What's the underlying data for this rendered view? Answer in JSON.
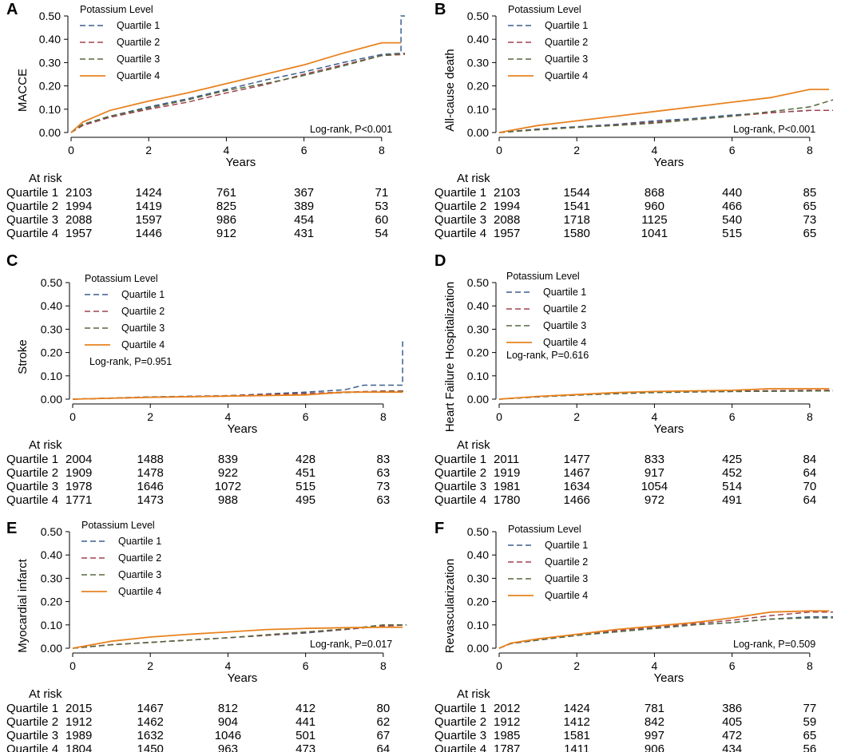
{
  "colors": {
    "q1": "#3a5f8f",
    "q2": "#a0424e",
    "q3": "#56683c",
    "q4": "#e8821f",
    "axis": "#000000"
  },
  "common": {
    "xlabel": "Years",
    "legend_title": "Potassium Level",
    "at_risk_label": "At risk",
    "y_ticks": [
      "0.00",
      "0.10",
      "0.20",
      "0.30",
      "0.40",
      "0.50"
    ],
    "x_ticks": [
      "0",
      "2",
      "4",
      "6",
      "8"
    ]
  },
  "chart_data": [
    {
      "type": "line",
      "letter": "A",
      "ylabel": "MACCE",
      "xlabel": "Years",
      "xlim": [
        0,
        8.6
      ],
      "ylim": [
        0,
        0.5
      ],
      "logrank": "Log-rank, P<0.001",
      "legend_title": "Potassium Level",
      "series": [
        {
          "name": "Quartile 1",
          "x": [
            0,
            0.3,
            1,
            2,
            3,
            4,
            5,
            6,
            7,
            8,
            8.5,
            8.5,
            8.6
          ],
          "y": [
            0,
            0.035,
            0.07,
            0.11,
            0.145,
            0.185,
            0.225,
            0.26,
            0.3,
            0.335,
            0.34,
            0.5,
            0.5
          ]
        },
        {
          "name": "Quartile 2",
          "x": [
            0,
            0.3,
            1,
            2,
            3,
            4,
            5,
            6,
            7,
            8,
            8.6
          ],
          "y": [
            0,
            0.03,
            0.065,
            0.1,
            0.13,
            0.17,
            0.205,
            0.25,
            0.29,
            0.33,
            0.335
          ]
        },
        {
          "name": "Quartile 3",
          "x": [
            0,
            0.3,
            1,
            2,
            3,
            4,
            5,
            6,
            7,
            8,
            8.6
          ],
          "y": [
            0,
            0.035,
            0.07,
            0.105,
            0.14,
            0.18,
            0.21,
            0.245,
            0.285,
            0.33,
            0.34
          ]
        },
        {
          "name": "Quartile 4",
          "x": [
            0,
            0.3,
            1,
            2,
            3,
            4,
            5,
            6,
            7,
            8,
            8.5
          ],
          "y": [
            0,
            0.045,
            0.095,
            0.135,
            0.17,
            0.21,
            0.25,
            0.29,
            0.34,
            0.385,
            0.385
          ]
        }
      ],
      "at_risk": [
        {
          "label": "Quartile 1",
          "values": [
            "2103",
            "1424",
            "761",
            "367",
            "71"
          ]
        },
        {
          "label": "Quartile 2",
          "values": [
            "1994",
            "1419",
            "825",
            "389",
            "53"
          ]
        },
        {
          "label": "Quartile 3",
          "values": [
            "2088",
            "1597",
            "986",
            "454",
            "60"
          ]
        },
        {
          "label": "Quartile 4",
          "values": [
            "1957",
            "1446",
            "912",
            "431",
            "54"
          ]
        }
      ]
    },
    {
      "type": "line",
      "letter": "B",
      "ylabel": "All-cause death",
      "xlabel": "Years",
      "xlim": [
        0,
        8.6
      ],
      "ylim": [
        0,
        0.5
      ],
      "logrank": "Log-rank, P<0.001",
      "legend_title": "Potassium Level",
      "series": [
        {
          "name": "Quartile 1",
          "x": [
            0,
            1,
            2,
            3,
            4,
            5,
            6,
            7,
            8,
            8.6
          ],
          "y": [
            0,
            0.015,
            0.025,
            0.035,
            0.05,
            0.06,
            0.075,
            0.085,
            0.095,
            0.095
          ]
        },
        {
          "name": "Quartile 2",
          "x": [
            0,
            1,
            2,
            3,
            4,
            5,
            6,
            7,
            8,
            8.6
          ],
          "y": [
            0,
            0.012,
            0.022,
            0.032,
            0.045,
            0.055,
            0.07,
            0.085,
            0.095,
            0.095
          ]
        },
        {
          "name": "Quartile 3",
          "x": [
            0,
            1,
            2,
            3,
            4,
            5,
            6,
            7,
            8,
            8.6
          ],
          "y": [
            0,
            0.012,
            0.022,
            0.03,
            0.04,
            0.055,
            0.07,
            0.09,
            0.11,
            0.14
          ]
        },
        {
          "name": "Quartile 4",
          "x": [
            0,
            1,
            2,
            3,
            4,
            5,
            6,
            7,
            8,
            8.5
          ],
          "y": [
            0,
            0.03,
            0.05,
            0.07,
            0.09,
            0.11,
            0.13,
            0.15,
            0.185,
            0.185
          ]
        }
      ],
      "at_risk": [
        {
          "label": "Quartile 1",
          "values": [
            "2103",
            "1544",
            "868",
            "440",
            "85"
          ]
        },
        {
          "label": "Quartile 2",
          "values": [
            "1994",
            "1541",
            "960",
            "466",
            "65"
          ]
        },
        {
          "label": "Quartile 3",
          "values": [
            "2088",
            "1718",
            "1125",
            "540",
            "73"
          ]
        },
        {
          "label": "Quartile 4",
          "values": [
            "1957",
            "1580",
            "1041",
            "515",
            "65"
          ]
        }
      ]
    },
    {
      "type": "line",
      "letter": "C",
      "ylabel": "Stroke",
      "xlabel": "Years",
      "xlim": [
        0,
        8.6
      ],
      "ylim": [
        0,
        0.5
      ],
      "logrank": "Log-rank, P=0.951",
      "legend_title": "Potassium Level",
      "series": [
        {
          "name": "Quartile 1",
          "x": [
            0,
            2,
            4,
            6,
            7,
            7.5,
            8.5,
            8.5,
            8.6
          ],
          "y": [
            0,
            0.01,
            0.015,
            0.03,
            0.04,
            0.06,
            0.06,
            0.245,
            0.245
          ]
        },
        {
          "name": "Quartile 2",
          "x": [
            0,
            2,
            4,
            6,
            7,
            8,
            8.6
          ],
          "y": [
            0,
            0.008,
            0.015,
            0.025,
            0.03,
            0.035,
            0.035
          ]
        },
        {
          "name": "Quartile 3",
          "x": [
            0,
            2,
            4,
            6,
            7,
            8,
            8.6
          ],
          "y": [
            0,
            0.008,
            0.013,
            0.02,
            0.028,
            0.033,
            0.033
          ]
        },
        {
          "name": "Quartile 4",
          "x": [
            0,
            2,
            4,
            6,
            7,
            8,
            8.5
          ],
          "y": [
            0,
            0.008,
            0.013,
            0.018,
            0.03,
            0.03,
            0.03
          ]
        }
      ],
      "at_risk": [
        {
          "label": "Quartile 1",
          "values": [
            "2004",
            "1488",
            "839",
            "428",
            "83"
          ]
        },
        {
          "label": "Quartile 2",
          "values": [
            "1909",
            "1478",
            "922",
            "451",
            "63"
          ]
        },
        {
          "label": "Quartile 3",
          "values": [
            "1978",
            "1646",
            "1072",
            "515",
            "73"
          ]
        },
        {
          "label": "Quartile 4",
          "values": [
            "1771",
            "1473",
            "988",
            "495",
            "63"
          ]
        }
      ]
    },
    {
      "type": "line",
      "letter": "D",
      "ylabel": "Heart Failure Hospitalization",
      "xlabel": "Years",
      "xlim": [
        0,
        8.6
      ],
      "ylim": [
        0,
        0.5
      ],
      "logrank": "Log-rank, P=0.616",
      "legend_title": "Potassium Level",
      "series": [
        {
          "name": "Quartile 1",
          "x": [
            0,
            1,
            2,
            3,
            4,
            6,
            8,
            8.6
          ],
          "y": [
            0,
            0.01,
            0.018,
            0.025,
            0.03,
            0.033,
            0.035,
            0.035
          ]
        },
        {
          "name": "Quartile 2",
          "x": [
            0,
            1,
            2,
            3,
            4,
            6,
            8,
            8.6
          ],
          "y": [
            0,
            0.01,
            0.018,
            0.025,
            0.03,
            0.035,
            0.038,
            0.038
          ]
        },
        {
          "name": "Quartile 3",
          "x": [
            0,
            1,
            2,
            3,
            4,
            6,
            8,
            8.6
          ],
          "y": [
            0,
            0.01,
            0.017,
            0.023,
            0.028,
            0.033,
            0.035,
            0.035
          ]
        },
        {
          "name": "Quartile 4",
          "x": [
            0,
            1,
            2,
            3,
            4,
            6,
            7,
            8.5
          ],
          "y": [
            0,
            0.012,
            0.02,
            0.028,
            0.033,
            0.038,
            0.045,
            0.045
          ]
        }
      ],
      "at_risk": [
        {
          "label": "Quartile 1",
          "values": [
            "2011",
            "1477",
            "833",
            "425",
            "84"
          ]
        },
        {
          "label": "Quartile 2",
          "values": [
            "1919",
            "1467",
            "917",
            "452",
            "64"
          ]
        },
        {
          "label": "Quartile 3",
          "values": [
            "1981",
            "1634",
            "1054",
            "514",
            "70"
          ]
        },
        {
          "label": "Quartile 4",
          "values": [
            "1780",
            "1466",
            "972",
            "491",
            "64"
          ]
        }
      ]
    },
    {
      "type": "line",
      "letter": "E",
      "ylabel": "Myocardial infarct",
      "xlabel": "Years",
      "xlim": [
        0,
        8.6
      ],
      "ylim": [
        0,
        0.5
      ],
      "logrank": "Log-rank, P=0.017",
      "legend_title": "Potassium Level",
      "series": [
        {
          "name": "Quartile 1",
          "x": [
            0,
            1,
            2,
            3,
            4,
            5,
            6,
            7,
            8,
            8.6
          ],
          "y": [
            0,
            0.015,
            0.025,
            0.035,
            0.045,
            0.055,
            0.065,
            0.08,
            0.095,
            0.1
          ]
        },
        {
          "name": "Quartile 2",
          "x": [
            0,
            1,
            2,
            3,
            4,
            5,
            6,
            7,
            8,
            8.6
          ],
          "y": [
            0,
            0.015,
            0.025,
            0.035,
            0.045,
            0.055,
            0.068,
            0.08,
            0.095,
            0.1
          ]
        },
        {
          "name": "Quartile 3",
          "x": [
            0,
            1,
            2,
            3,
            4,
            5,
            6,
            7,
            8,
            8.6
          ],
          "y": [
            0,
            0.015,
            0.025,
            0.035,
            0.045,
            0.058,
            0.07,
            0.082,
            0.1,
            0.1
          ]
        },
        {
          "name": "Quartile 4",
          "x": [
            0,
            1,
            2,
            3,
            4,
            5,
            6,
            7,
            8,
            8.5
          ],
          "y": [
            0,
            0.03,
            0.048,
            0.06,
            0.07,
            0.08,
            0.085,
            0.088,
            0.09,
            0.09
          ]
        }
      ],
      "at_risk": [
        {
          "label": "Quartile 1",
          "values": [
            "2015",
            "1467",
            "812",
            "412",
            "80"
          ]
        },
        {
          "label": "Quartile 2",
          "values": [
            "1912",
            "1462",
            "904",
            "441",
            "62"
          ]
        },
        {
          "label": "Quartile 3",
          "values": [
            "1989",
            "1632",
            "1046",
            "501",
            "67"
          ]
        },
        {
          "label": "Quartile 4",
          "values": [
            "1804",
            "1450",
            "963",
            "473",
            "64"
          ]
        }
      ]
    },
    {
      "type": "line",
      "letter": "F",
      "ylabel": "Revascularization",
      "xlabel": "Years",
      "xlim": [
        0,
        8.6
      ],
      "ylim": [
        0,
        0.5
      ],
      "logrank": "Log-rank, P=0.509",
      "legend_title": "Potassium Level",
      "series": [
        {
          "name": "Quartile 1",
          "x": [
            0,
            0.3,
            1,
            2,
            3,
            4,
            5,
            6,
            7,
            8,
            8.6
          ],
          "y": [
            0,
            0.02,
            0.035,
            0.055,
            0.07,
            0.085,
            0.1,
            0.11,
            0.125,
            0.135,
            0.135
          ]
        },
        {
          "name": "Quartile 2",
          "x": [
            0,
            0.3,
            1,
            2,
            3,
            4,
            5,
            6,
            7,
            8,
            8.6
          ],
          "y": [
            0,
            0.02,
            0.035,
            0.055,
            0.075,
            0.09,
            0.105,
            0.12,
            0.14,
            0.155,
            0.155
          ]
        },
        {
          "name": "Quartile 3",
          "x": [
            0,
            0.3,
            1,
            2,
            3,
            4,
            5,
            6,
            7,
            8,
            8.6
          ],
          "y": [
            0,
            0.02,
            0.035,
            0.055,
            0.07,
            0.085,
            0.1,
            0.11,
            0.125,
            0.13,
            0.13
          ]
        },
        {
          "name": "Quartile 4",
          "x": [
            0,
            0.3,
            1,
            2,
            3,
            4,
            5,
            6,
            7,
            8,
            8.5
          ],
          "y": [
            0,
            0.022,
            0.04,
            0.06,
            0.08,
            0.095,
            0.11,
            0.13,
            0.155,
            0.16,
            0.16
          ]
        }
      ],
      "at_risk": [
        {
          "label": "Quartile 1",
          "values": [
            "2012",
            "1424",
            "781",
            "386",
            "77"
          ]
        },
        {
          "label": "Quartile 2",
          "values": [
            "1912",
            "1412",
            "842",
            "405",
            "59"
          ]
        },
        {
          "label": "Quartile 3",
          "values": [
            "1985",
            "1581",
            "997",
            "472",
            "65"
          ]
        },
        {
          "label": "Quartile 4",
          "values": [
            "1787",
            "1411",
            "906",
            "434",
            "56"
          ]
        }
      ]
    }
  ]
}
